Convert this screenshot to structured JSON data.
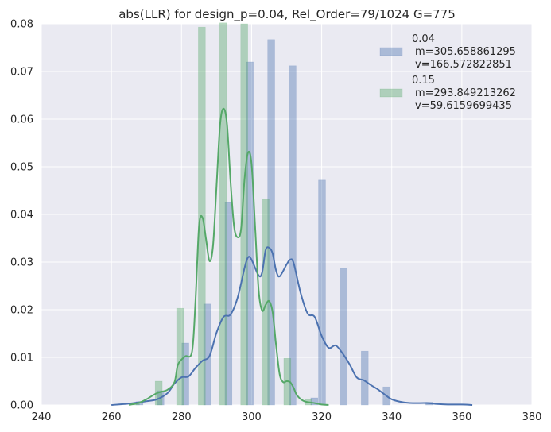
{
  "chart_data": {
    "type": "bar",
    "title": "abs(LLR) for design_p=0.04, Rel_Order=79/1024 G=775",
    "xlabel": "",
    "ylabel": "",
    "xlim": [
      240,
      380
    ],
    "ylim": [
      0,
      0.08
    ],
    "x_ticks": [
      "240",
      "260",
      "280",
      "300",
      "320",
      "340",
      "360",
      "380"
    ],
    "y_ticks": [
      "0.00",
      "0.01",
      "0.02",
      "0.03",
      "0.04",
      "0.05",
      "0.06",
      "0.07",
      "0.08"
    ],
    "grid": true,
    "legend_position": "top-right",
    "series": [
      {
        "name_lines": [
          "0.04",
          "m=305.658861295",
          "v=166.572822851"
        ],
        "color": "#4c72b0",
        "hist": [
          {
            "x0": 267.0,
            "x1": 269.0,
            "y": 0.0007
          },
          {
            "x0": 273.0,
            "x1": 275.0,
            "y": 0.003
          },
          {
            "x0": 280.1,
            "x1": 282.1,
            "y": 0.013
          },
          {
            "x0": 286.3,
            "x1": 288.3,
            "y": 0.0212
          },
          {
            "x0": 292.4,
            "x1": 294.4,
            "y": 0.0425
          },
          {
            "x0": 298.5,
            "x1": 300.5,
            "y": 0.072
          },
          {
            "x0": 304.6,
            "x1": 306.6,
            "y": 0.0767
          },
          {
            "x0": 310.7,
            "x1": 312.7,
            "y": 0.0712
          },
          {
            "x0": 316.9,
            "x1": 318.9,
            "y": 0.0015
          },
          {
            "x0": 319.1,
            "x1": 321.1,
            "y": 0.0472
          },
          {
            "x0": 325.2,
            "x1": 327.2,
            "y": 0.0287
          },
          {
            "x0": 331.3,
            "x1": 333.3,
            "y": 0.0113
          },
          {
            "x0": 337.5,
            "x1": 339.5,
            "y": 0.0038
          },
          {
            "x0": 349.7,
            "x1": 351.7,
            "y": 0.0006
          }
        ],
        "kde": [
          [
            260,
            0
          ],
          [
            265,
            0.0003
          ],
          [
            270,
            0.0008
          ],
          [
            273,
            0.0012
          ],
          [
            276,
            0.0025
          ],
          [
            278,
            0.0045
          ],
          [
            280,
            0.0058
          ],
          [
            282,
            0.006
          ],
          [
            284,
            0.0078
          ],
          [
            286,
            0.0093
          ],
          [
            288,
            0.0103
          ],
          [
            290,
            0.0152
          ],
          [
            292,
            0.0185
          ],
          [
            294,
            0.019
          ],
          [
            296,
            0.0225
          ],
          [
            298,
            0.0288
          ],
          [
            299,
            0.031
          ],
          [
            300,
            0.0305
          ],
          [
            302,
            0.0272
          ],
          [
            303,
            0.0278
          ],
          [
            304,
            0.0325
          ],
          [
            305,
            0.033
          ],
          [
            306,
            0.0318
          ],
          [
            307,
            0.0282
          ],
          [
            308,
            0.027
          ],
          [
            310,
            0.0295
          ],
          [
            311,
            0.0305
          ],
          [
            312,
            0.0298
          ],
          [
            314,
            0.0235
          ],
          [
            316,
            0.0192
          ],
          [
            318,
            0.0185
          ],
          [
            320,
            0.0145
          ],
          [
            322,
            0.012
          ],
          [
            324,
            0.0125
          ],
          [
            326,
            0.0108
          ],
          [
            328,
            0.0085
          ],
          [
            330,
            0.0058
          ],
          [
            332,
            0.0052
          ],
          [
            334,
            0.0042
          ],
          [
            336,
            0.0033
          ],
          [
            338,
            0.0022
          ],
          [
            340,
            0.0012
          ],
          [
            343,
            0.0006
          ],
          [
            346,
            0.0004
          ],
          [
            350,
            0.0004
          ],
          [
            353,
            0.0002
          ],
          [
            356,
            0.0001
          ],
          [
            360,
            0.0001
          ],
          [
            363,
            0
          ]
        ]
      },
      {
        "name_lines": [
          "0.15",
          "m=293.849213262",
          "v=59.6159699435"
        ],
        "color": "#55a868",
        "hist": [
          {
            "x0": 266.0,
            "x1": 268.0,
            "y": 0.0003
          },
          {
            "x0": 272.5,
            "x1": 274.5,
            "y": 0.005
          },
          {
            "x0": 278.6,
            "x1": 280.6,
            "y": 0.0203
          },
          {
            "x0": 284.8,
            "x1": 286.8,
            "y": 0.0793
          },
          {
            "x0": 290.9,
            "x1": 292.9,
            "y": 0.0802
          },
          {
            "x0": 296.9,
            "x1": 298.9,
            "y": 0.08
          },
          {
            "x0": 303.0,
            "x1": 305.0,
            "y": 0.0432
          },
          {
            "x0": 309.2,
            "x1": 311.2,
            "y": 0.0098
          },
          {
            "x0": 315.3,
            "x1": 317.3,
            "y": 0.0012
          }
        ],
        "kde": [
          [
            265,
            0
          ],
          [
            268,
            0.0005
          ],
          [
            270,
            0.0012
          ],
          [
            273,
            0.0025
          ],
          [
            276,
            0.0032
          ],
          [
            278,
            0.0048
          ],
          [
            279,
            0.0085
          ],
          [
            281,
            0.0102
          ],
          [
            283,
            0.0112
          ],
          [
            284,
            0.022
          ],
          [
            285,
            0.0375
          ],
          [
            286,
            0.0393
          ],
          [
            287,
            0.0348
          ],
          [
            288,
            0.0302
          ],
          [
            289,
            0.0335
          ],
          [
            290,
            0.046
          ],
          [
            291,
            0.0588
          ],
          [
            292,
            0.0622
          ],
          [
            293,
            0.0588
          ],
          [
            294,
            0.0468
          ],
          [
            295,
            0.0375
          ],
          [
            296,
            0.0352
          ],
          [
            297,
            0.037
          ],
          [
            298,
            0.0475
          ],
          [
            299,
            0.053
          ],
          [
            300,
            0.0505
          ],
          [
            301,
            0.0375
          ],
          [
            302,
            0.0242
          ],
          [
            303,
            0.0198
          ],
          [
            304,
            0.021
          ],
          [
            305,
            0.0218
          ],
          [
            306,
            0.0195
          ],
          [
            307,
            0.0125
          ],
          [
            308,
            0.0065
          ],
          [
            309,
            0.0048
          ],
          [
            310,
            0.005
          ],
          [
            311,
            0.0048
          ],
          [
            312,
            0.0036
          ],
          [
            313,
            0.002
          ],
          [
            315,
            0.0008
          ],
          [
            318,
            0.0004
          ],
          [
            320,
            0.0001
          ],
          [
            322,
            0
          ]
        ]
      }
    ]
  }
}
